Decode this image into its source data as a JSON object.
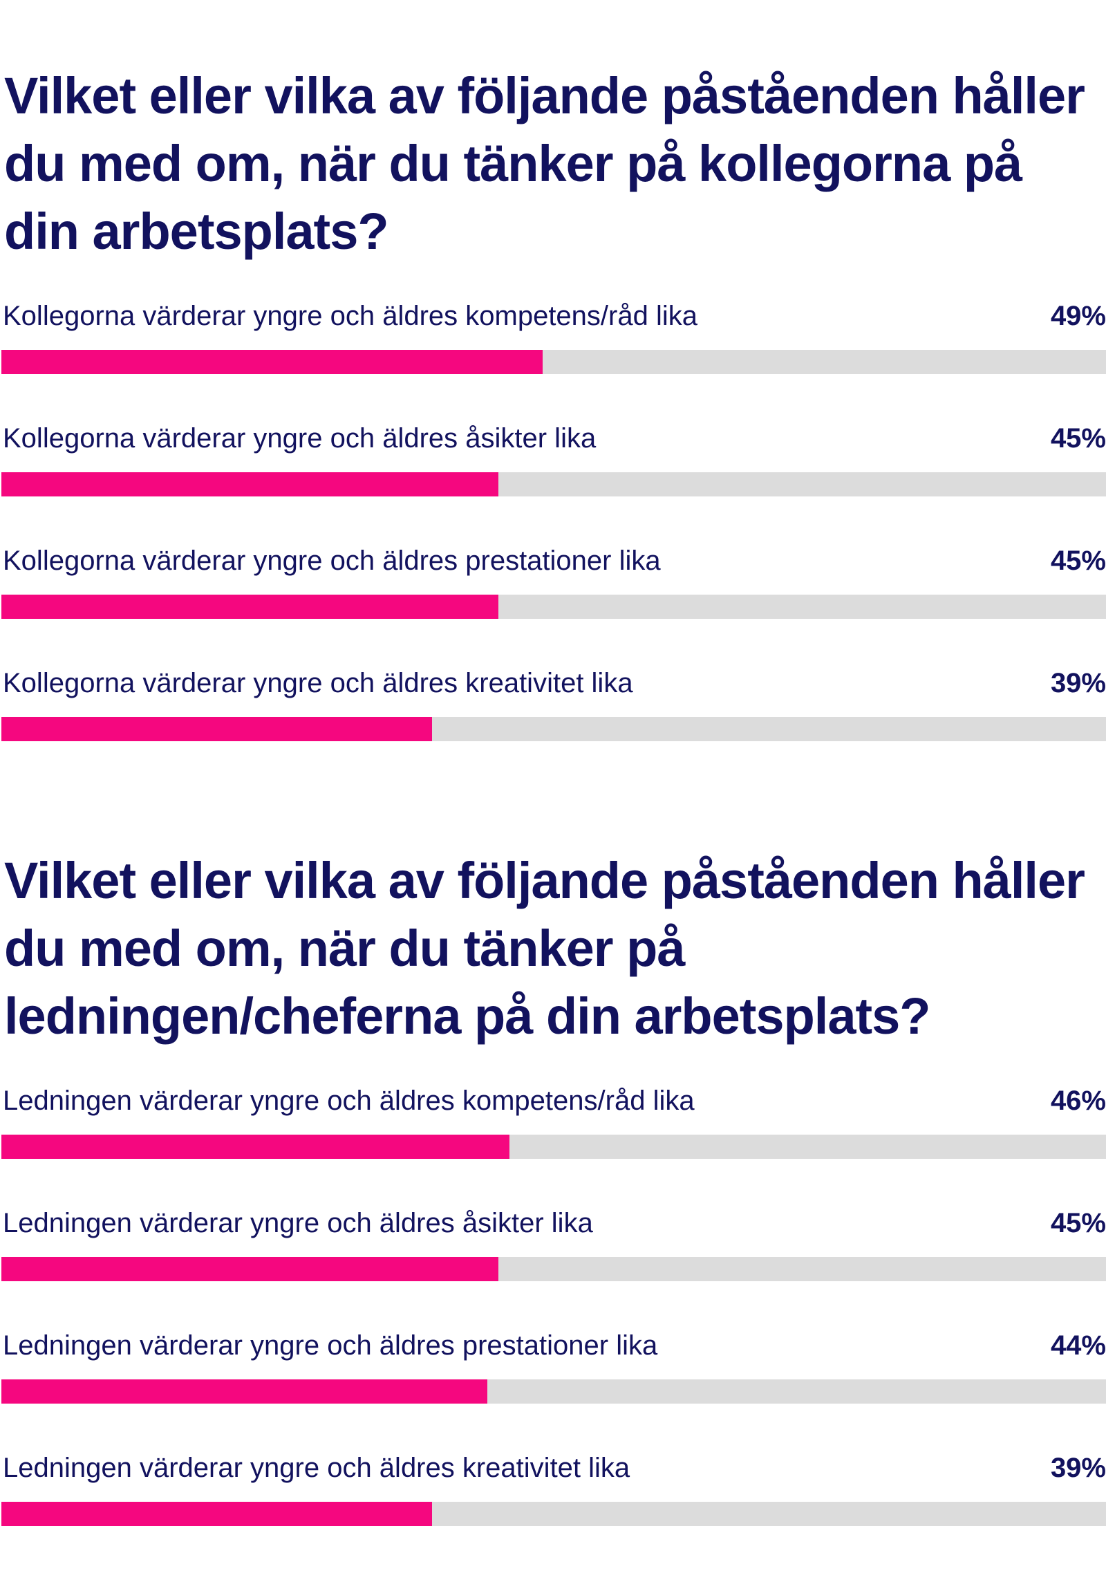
{
  "colors": {
    "title": "#12125e",
    "bar_fill": "#f5077f",
    "bar_track": "#dcdcdc"
  },
  "chart_data": [
    {
      "type": "bar",
      "orientation": "horizontal",
      "title": "Vilket eller vilka av följande påståenden håller du med om, när du tänker på kollegorna på din arbetsplats?",
      "categories": [
        "Kollegorna värderar yngre och äldres kompetens/råd lika",
        "Kollegorna värderar yngre och äldres åsikter lika",
        "Kollegorna värderar yngre och äldres prestationer lika",
        "Kollegorna värderar yngre och äldres kreativitet lika"
      ],
      "values": [
        49,
        45,
        45,
        39
      ],
      "value_labels": [
        "49%",
        "45%",
        "45%",
        "39%"
      ],
      "xlim": [
        0,
        100
      ],
      "grid": false
    },
    {
      "type": "bar",
      "orientation": "horizontal",
      "title": "Vilket eller vilka av följande påståenden håller du med om, när du tänker på ledningen/cheferna på din arbetsplats?",
      "categories": [
        "Ledningen värderar yngre och äldres kompetens/råd lika",
        "Ledningen värderar yngre och äldres åsikter lika",
        "Ledningen värderar yngre och äldres prestationer lika",
        "Ledningen värderar yngre och äldres kreativitet lika"
      ],
      "values": [
        46,
        45,
        44,
        39
      ],
      "value_labels": [
        "46%",
        "45%",
        "44%",
        "39%"
      ],
      "xlim": [
        0,
        100
      ],
      "grid": false
    }
  ]
}
